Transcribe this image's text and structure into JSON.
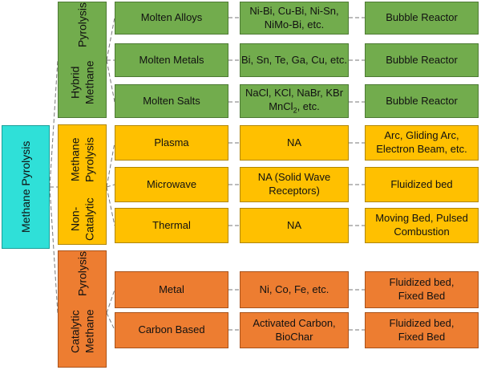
{
  "root": {
    "label": "Methane Pyrolysis"
  },
  "colors": {
    "hybrid": "#72ac4d",
    "non_catalytic": "#ffc000",
    "catalytic": "#ed7d31",
    "root": "#2fe0d8"
  },
  "groups": [
    {
      "label_line1": "Hybrid Methane",
      "label_line2": "Pyrolysis",
      "rows": [
        {
          "type": "Molten Alloys",
          "material": "Ni-Bi, Cu-Bi, Ni-Sn, NiMo-Bi, etc.",
          "reactor": "Bubble Reactor"
        },
        {
          "type": "Molten Metals",
          "material": "Bi, Sn, Te, Ga, Cu, etc.",
          "reactor": "Bubble Reactor"
        },
        {
          "type": "Molten Salts",
          "material_line1": "NaCl, KCl, NaBr, KBr",
          "material_line2_pre": "MnCl",
          "material_sub": "2",
          "material_line2_post": ", etc.",
          "reactor": "Bubble Reactor"
        }
      ]
    },
    {
      "label_line1": "Non-Catalytic",
      "label_line2": "Methane Pyrolysis",
      "rows": [
        {
          "type": "Plasma",
          "material": "NA",
          "reactor": "Arc, Gliding Arc, Electron Beam, etc."
        },
        {
          "type": "Microwave",
          "material": "NA (Solid Wave Receptors)",
          "reactor": "Fluidized bed"
        },
        {
          "type": "Thermal",
          "material": "NA",
          "reactor": "Moving Bed, Pulsed Combustion"
        }
      ]
    },
    {
      "label_line1": "Catalytic Methane",
      "label_line2": "Pyrolysis",
      "rows": [
        {
          "type": "Metal",
          "material": "Ni, Co, Fe, etc.",
          "reactor": "Fluidized bed, Fixed Bed"
        },
        {
          "type": "Carbon Based",
          "material": "Activated Carbon, BioChar",
          "reactor": "Fluidized bed, Fixed Bed"
        }
      ]
    }
  ]
}
